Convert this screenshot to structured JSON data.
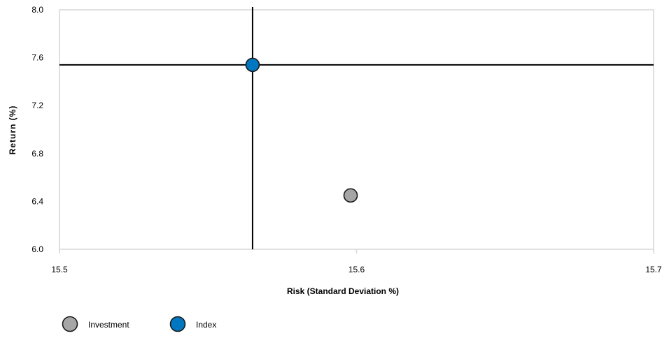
{
  "chart_data": {
    "type": "scatter",
    "xlabel": "Risk (Standard Deviation %)",
    "ylabel": "Return (%)",
    "xlim": [
      15.5,
      15.7
    ],
    "ylim": [
      6.0,
      8.0
    ],
    "x_ticks": [
      15.5,
      15.6,
      15.7
    ],
    "x_tick_labels": [
      "15.5",
      "15.6",
      "15.7"
    ],
    "y_ticks": [
      6.0,
      6.4,
      6.8,
      7.2,
      7.6,
      8.0
    ],
    "y_tick_labels": [
      "6.0",
      "6.4",
      "6.8",
      "7.2",
      "7.6",
      "8.0"
    ],
    "grid": false,
    "legend_position": "bottom-left",
    "crosshair": {
      "x": 15.565,
      "y": 7.54
    },
    "series": [
      {
        "name": "Investment",
        "color": "#a6a6a6",
        "points": [
          {
            "x": 15.598,
            "y": 6.45
          }
        ]
      },
      {
        "name": "Index",
        "color": "#0077c0",
        "points": [
          {
            "x": 15.565,
            "y": 7.54
          }
        ]
      }
    ]
  }
}
